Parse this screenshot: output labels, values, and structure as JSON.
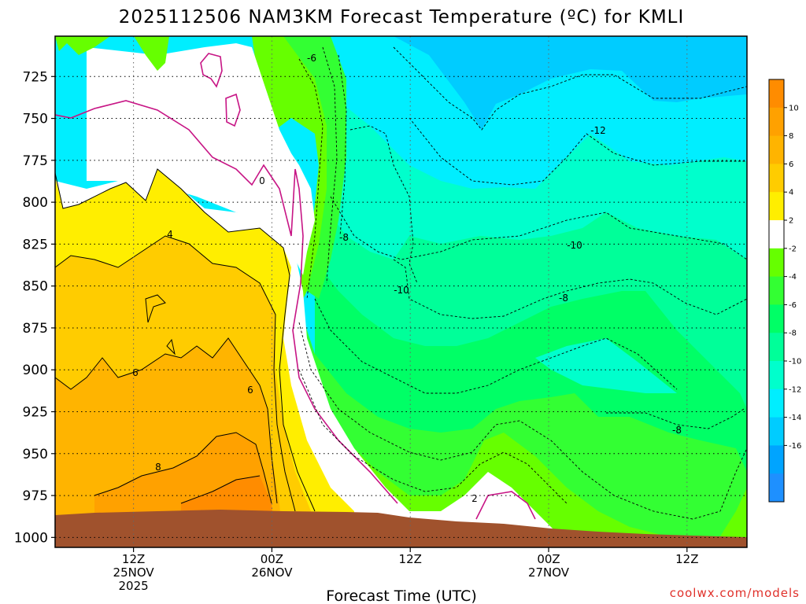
{
  "title": "2025112506 NAM3KM Forecast Temperature (ºC) for KMLI",
  "credit": "coolwx.com/models",
  "chart_data": {
    "type": "heatmap",
    "title": "2025112506 NAM3KM Forecast Temperature (ºC) for KMLI",
    "xlabel": "Forecast Time (UTC)",
    "ylabel": "",
    "x_range_hours_from_init": [
      0,
      60
    ],
    "y_range_hPa": [
      1005,
      700
    ],
    "y_ticks": [
      "725",
      "750",
      "775",
      "800",
      "825",
      "850",
      "875",
      "900",
      "925",
      "950",
      "975",
      "1000"
    ],
    "x_ticks": [
      {
        "line1": "12Z",
        "line2": "25NOV",
        "line3": "2025"
      },
      {
        "line1": "00Z",
        "line2": "26NOV",
        "line3": ""
      },
      {
        "line1": "12Z",
        "line2": "",
        "line3": ""
      },
      {
        "line1": "00Z",
        "line2": "27NOV",
        "line3": ""
      },
      {
        "line1": "12Z",
        "line2": "",
        "line3": ""
      }
    ],
    "grid": true,
    "colorbar_ticks": [
      "10",
      "8",
      "6",
      "4",
      "2",
      "-2",
      "-4",
      "-6",
      "-8",
      "-10",
      "-12",
      "-14",
      "-16"
    ],
    "colorbar_colors": [
      "#ff8c00",
      "#ffa100",
      "#ffb400",
      "#ffcc00",
      "#ffee00",
      "#ffffff",
      "#66ff00",
      "#33ff33",
      "#00ff66",
      "#00ff99",
      "#00ffcc",
      "#00eeff",
      "#00ccff",
      "#00a4ff",
      "#1e90ff"
    ],
    "contour_labels": [
      {
        "text": "-6"
      },
      {
        "text": "0"
      },
      {
        "text": "4"
      },
      {
        "text": "-8"
      },
      {
        "text": "-10"
      },
      {
        "text": "-12"
      },
      {
        "text": "-10"
      },
      {
        "text": "-8"
      },
      {
        "text": "6"
      },
      {
        "text": "6"
      },
      {
        "text": "8"
      },
      {
        "text": "-8"
      },
      {
        "text": "2"
      }
    ],
    "terrain_color": "#a0522d",
    "freezing_line_color": "#c71585"
  }
}
